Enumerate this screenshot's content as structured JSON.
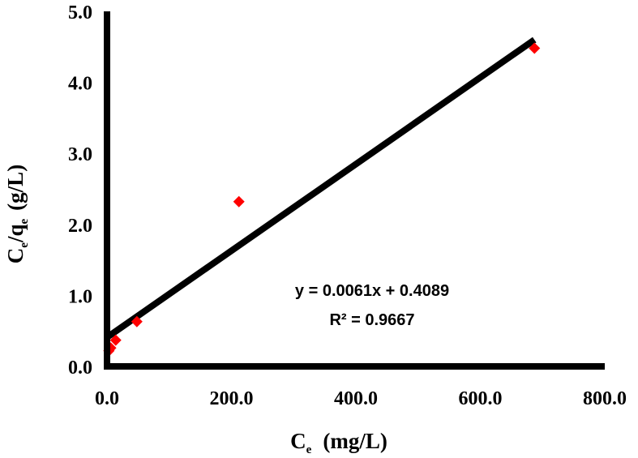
{
  "chart_data": {
    "type": "scatter",
    "xlabel_main": "C",
    "xlabel_sub": "e",
    "xlabel_units": "(mg/L)",
    "ylabel_c": "C",
    "ylabel_c_sub": "e",
    "ylabel_slash_q": "/q",
    "ylabel_q_sub": "e",
    "ylabel_units": "(g/L)",
    "xlim": [
      0,
      800
    ],
    "ylim": [
      0,
      5
    ],
    "x_ticks": [
      "0.0",
      "200.0",
      "400.0",
      "600.0",
      "800.0"
    ],
    "y_ticks": [
      "0.0",
      "1.0",
      "2.0",
      "3.0",
      "4.0",
      "5.0"
    ],
    "grid": false,
    "series": [
      {
        "x": [
          3,
          6,
          14,
          48,
          212,
          687
        ],
        "y": [
          0.22,
          0.26,
          0.37,
          0.63,
          2.32,
          4.48
        ],
        "color": "#ff0000",
        "marker": "diamond"
      }
    ],
    "trendline": {
      "type": "linear",
      "slope": 0.0061,
      "intercept": 0.4089,
      "x_range": [
        0,
        687
      ],
      "color": "#000000",
      "equation": "y = 0.0061x + 0.4089",
      "r_squared": "R² = 0.9667"
    }
  }
}
